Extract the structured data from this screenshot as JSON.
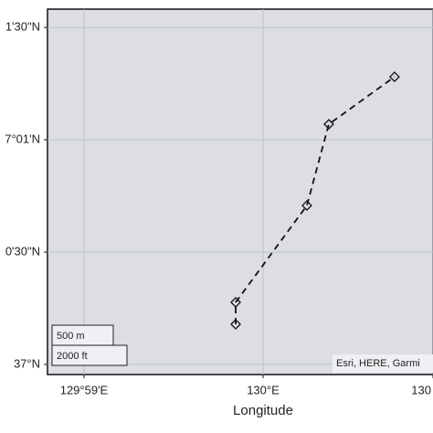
{
  "chart_data": {
    "type": "line",
    "x_label": "Longitude",
    "x": [
      129.99745,
      129.99745,
      130.00408,
      130.00612,
      130.01224
    ],
    "series": [
      {
        "color": "#111111",
        "values": [
          37.00298,
          37.00461,
          37.01179,
          37.01782,
          37.02134
        ]
      }
    ],
    "xlim": [
      129.97993,
      130.01582
    ],
    "ylim": [
      36.99925,
      37.02636
    ],
    "xticks": [
      {
        "value": 129.98333,
        "label": "129°59'E"
      },
      {
        "value": 130,
        "label": "130°E"
      },
      {
        "value": 130.01582,
        "label": "130"
      }
    ],
    "yticks": [
      {
        "value": 37,
        "label": "37°N"
      },
      {
        "value": 37.00833,
        "label": "0'30\"N"
      },
      {
        "value": 37.01667,
        "label": "7°01'N"
      },
      {
        "value": 37.025,
        "label": "1'30\"N"
      }
    ],
    "grid": true,
    "scale_bar": [
      "500 m",
      "2000 ft"
    ],
    "attribution": "Esri, HERE, Garmi"
  }
}
